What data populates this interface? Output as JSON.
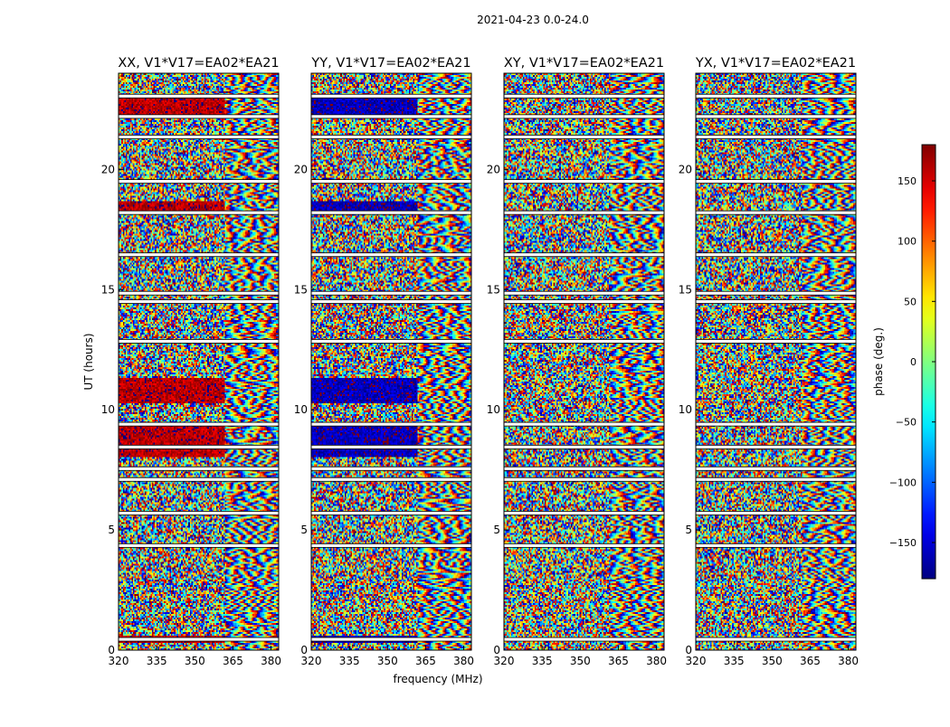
{
  "chart_data": {
    "type": "heatmap",
    "title": "2021-04-23 0.0-24.0",
    "xlabel": "frequency (MHz)",
    "ylabel": "UT (hours)",
    "xlim": [
      320,
      383
    ],
    "ylim": [
      0,
      24
    ],
    "x_ticks": [
      320,
      335,
      350,
      365,
      380
    ],
    "y_ticks": [
      0,
      5,
      10,
      15,
      20
    ],
    "panels": [
      {
        "title": "XX, V1*V17=EA02*EA21",
        "strong_phase_offset_deg": 160
      },
      {
        "title": "YY, V1*V17=EA02*EA21",
        "strong_phase_offset_deg": -160
      },
      {
        "title": "XY, V1*V17=EA02*EA21",
        "strong_phase_offset_deg": 0
      },
      {
        "title": "YX, V1*V17=EA02*EA21",
        "strong_phase_offset_deg": 0
      }
    ],
    "coherent_bands_hours": [
      [
        22.2,
        23.0
      ],
      [
        18.2,
        18.7
      ],
      [
        8.0,
        9.4
      ],
      [
        10.3,
        11.3
      ],
      [
        0.3,
        0.6
      ]
    ],
    "fringe_start_mhz": 362,
    "flagged_hours": [
      0.45,
      4.35,
      5.7,
      7.1,
      7.55,
      8.45,
      9.4,
      12.85,
      14.5,
      14.85,
      16.45,
      18.2,
      19.5,
      21.35,
      22.2,
      23.05
    ],
    "colorbar": {
      "label": "phase (deg.)",
      "range": [
        -180,
        180
      ],
      "ticks": [
        150,
        100,
        50,
        0,
        -50,
        -100,
        -150
      ],
      "colormap": "jet"
    }
  }
}
